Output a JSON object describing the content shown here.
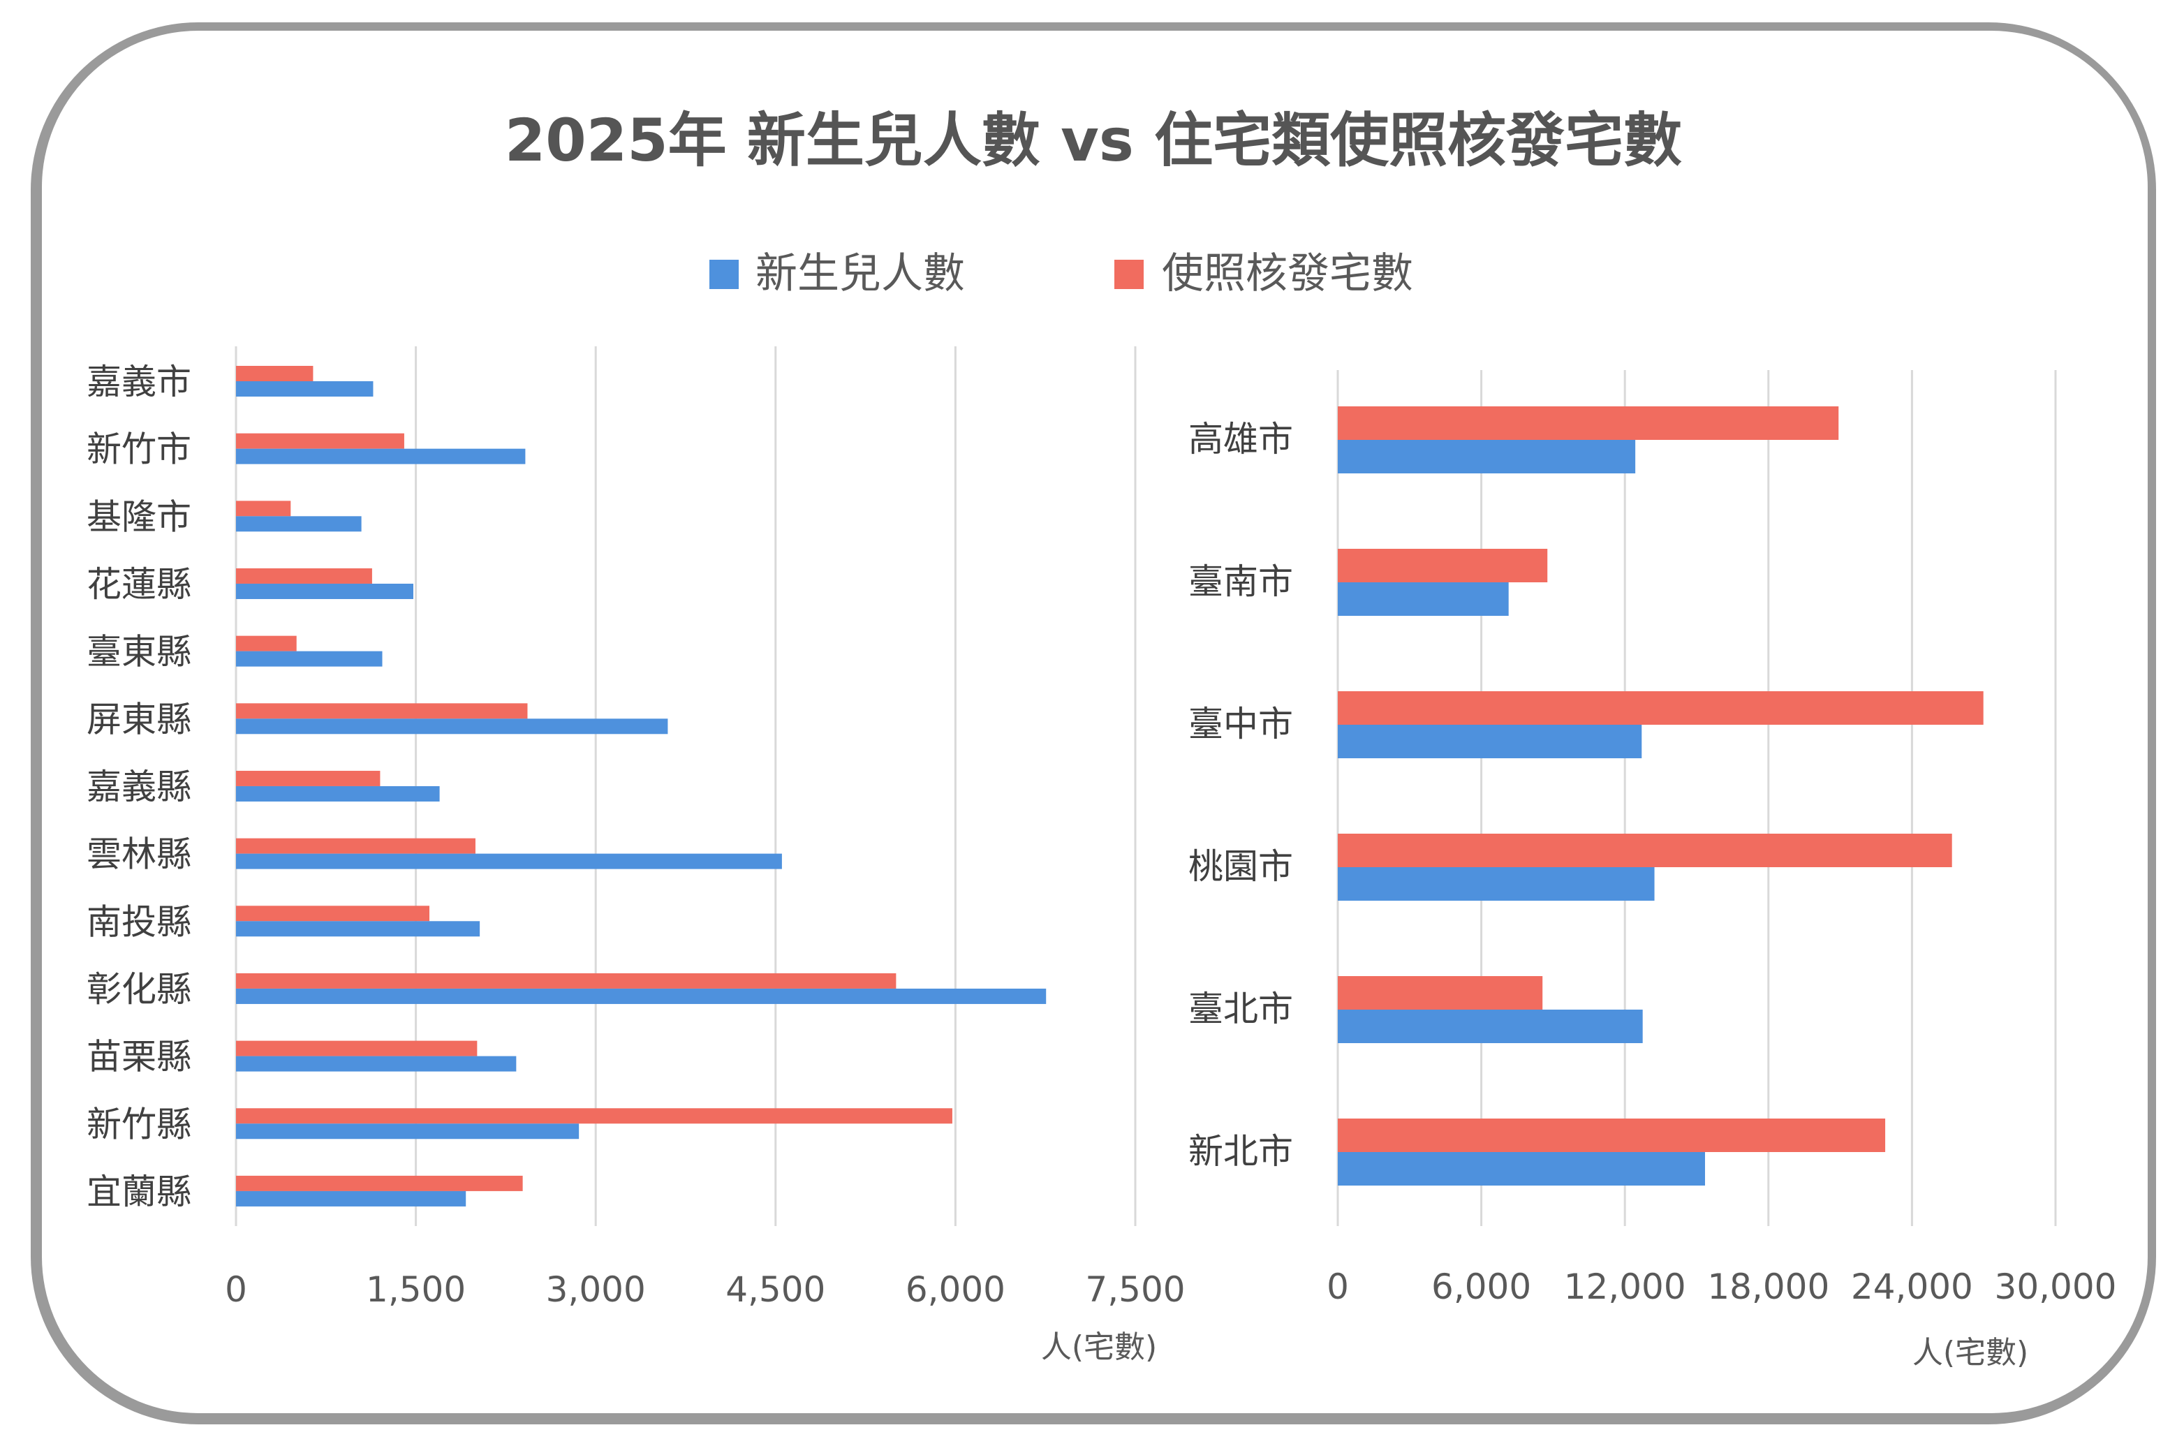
{
  "chart_data": [
    {
      "type": "bar",
      "orientation": "horizontal",
      "title": "2025年 新生兒人數 vs 住宅類使照核發宅數",
      "categories": [
        "嘉義市",
        "新竹市",
        "基隆市",
        "花蓮縣",
        "臺東縣",
        "屏東縣",
        "嘉義縣",
        "雲林縣",
        "南投縣",
        "彰化縣",
        "苗栗縣",
        "新竹縣",
        "宜蘭縣"
      ],
      "series": [
        {
          "name": "新生兒人數",
          "color": "#4E91DD",
          "values": [
            1144,
            2413,
            1046,
            1479,
            1220,
            3601,
            1698,
            4553,
            2033,
            6756,
            2337,
            2860,
            1917
          ]
        },
        {
          "name": "使照核發宅數",
          "color": "#F16C5F",
          "values": [
            643,
            1403,
            456,
            1135,
            505,
            2431,
            1202,
            1997,
            1613,
            5505,
            2011,
            5974,
            2391
          ]
        }
      ],
      "xlim": [
        0,
        7500
      ],
      "xticks": [
        "0",
        "1,500",
        "3,000",
        "4,500",
        "6,000",
        "7,500"
      ],
      "xlabel": "人(宅數)",
      "grid": true,
      "legend": "top"
    },
    {
      "type": "bar",
      "orientation": "horizontal",
      "categories": [
        "高雄市",
        "臺南市",
        "臺中市",
        "桃園市",
        "臺北市",
        "新北市"
      ],
      "series": [
        {
          "name": "新生兒人數",
          "color": "#4E91DD",
          "values": [
            12436,
            7141,
            12703,
            13236,
            12744,
            15350
          ]
        },
        {
          "name": "使照核發宅數",
          "color": "#F16C5F",
          "values": [
            20931,
            8762,
            26985,
            25672,
            8557,
            22881
          ]
        }
      ],
      "xlim": [
        0,
        30000
      ],
      "xticks": [
        "0",
        "6,000",
        "12,000",
        "18,000",
        "24,000",
        "30,000"
      ],
      "xlabel": "人(宅數)",
      "grid": true
    }
  ],
  "title": "2025年 新生兒人數 vs 住宅類使照核發宅數",
  "legend": [
    {
      "label": "新生兒人數",
      "color": "#4E91DD"
    },
    {
      "label": "使照核發宅數",
      "color": "#F16C5F"
    }
  ]
}
